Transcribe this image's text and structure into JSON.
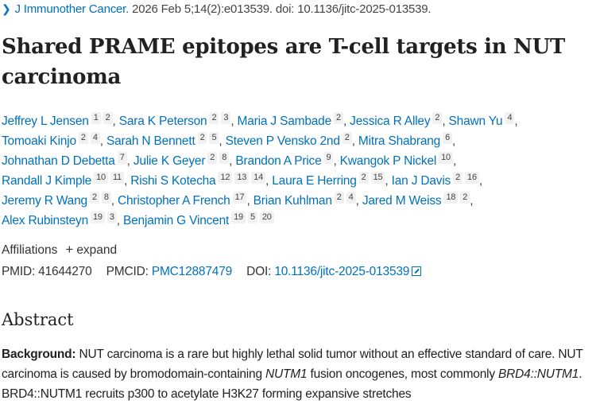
{
  "citation": {
    "journal": "J Immunother Cancer.",
    "details": "2026 Feb 5;14(2):e013539. doi: 10.1136/jitc-2025-013539."
  },
  "title": "Shared PRAME epitopes are T-cell targets in NUT carcinoma",
  "author_lines": [
    [
      {
        "name": "Jeffrey L Jensen",
        "affs": [
          "1",
          "2"
        ]
      },
      {
        "name": "Sara K Peterson",
        "affs": [
          "2",
          "3"
        ]
      },
      {
        "name": "Maria J Sambade",
        "affs": [
          "2"
        ]
      },
      {
        "name": "Jessica R Alley",
        "affs": [
          "2"
        ]
      },
      {
        "name": "Shawn Yu",
        "affs": [
          "4"
        ]
      }
    ],
    [
      {
        "name": "Tomoaki Kinjo",
        "affs": [
          "2",
          "4"
        ]
      },
      {
        "name": "Sarah N Bennett",
        "affs": [
          "2",
          "5"
        ]
      },
      {
        "name": "Steven P Vensko 2nd",
        "affs": [
          "2"
        ]
      },
      {
        "name": "Mitra Shabrang",
        "affs": [
          "6"
        ]
      }
    ],
    [
      {
        "name": "Johnathan D Debetta",
        "affs": [
          "7"
        ]
      },
      {
        "name": "Julie K Geyer",
        "affs": [
          "2",
          "8"
        ]
      },
      {
        "name": "Brandon A Price",
        "affs": [
          "9"
        ]
      },
      {
        "name": "Kwangok P Nickel",
        "affs": [
          "10"
        ]
      }
    ],
    [
      {
        "name": "Randall J Kimple",
        "affs": [
          "10",
          "11"
        ]
      },
      {
        "name": "Rishi S Kotecha",
        "affs": [
          "12",
          "13",
          "14"
        ]
      },
      {
        "name": "Laura E Herring",
        "affs": [
          "2",
          "15"
        ]
      },
      {
        "name": "Ian J Davis",
        "affs": [
          "2",
          "16"
        ]
      }
    ],
    [
      {
        "name": "Jeremy R Wang",
        "affs": [
          "2",
          "8"
        ]
      },
      {
        "name": "Christopher A French",
        "affs": [
          "17"
        ]
      },
      {
        "name": "Brian Kuhlman",
        "affs": [
          "2",
          "4"
        ]
      },
      {
        "name": "Jared M Weiss",
        "affs": [
          "18",
          "2"
        ]
      }
    ],
    [
      {
        "name": "Alex Rubinsteyn",
        "affs": [
          "19",
          "3"
        ]
      },
      {
        "name": "Benjamin G Vincent",
        "affs": [
          "19",
          "5",
          "20"
        ]
      }
    ]
  ],
  "affiliations": {
    "label": "Affiliations",
    "expand": "expand"
  },
  "ids": {
    "pmid_label": "PMID:",
    "pmid": "41644270",
    "pmcid_label": "PMCID:",
    "pmcid": "PMC12887479",
    "doi_label": "DOI:",
    "doi": "10.1136/jitc-2025-013539"
  },
  "abstract": {
    "heading": "Abstract",
    "bg_label": "Background:",
    "t1": " NUT carcinoma is a rare but highly lethal solid tumor without an effective standard of care. NUT carcinoma is caused by bromodomain-containing ",
    "i1": "NUTM1",
    "t2": " fusion oncogenes, most commonly ",
    "i2": "BRD4::NUTM1",
    "t3": ". BRD4::NUTM1 recruits p300 to acetylate H3K27 forming expansive stretches"
  },
  "colors": {
    "link": "#0071bc",
    "text": "#212121"
  }
}
